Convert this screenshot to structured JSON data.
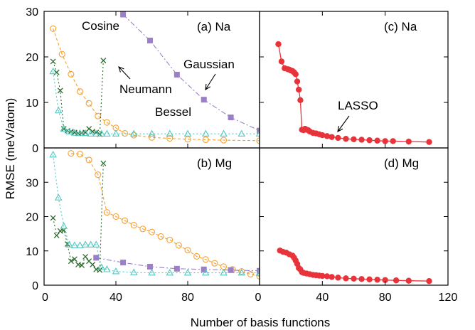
{
  "chart_data": {
    "type": "line",
    "xlabel": "Number of basis functions",
    "ylabel": "RMSE (meV/atom)",
    "colors": {
      "Cosine": "#f5a030",
      "Gaussian": "#9b7fc8",
      "Neumann": "#2e6b2e",
      "Bessel": "#50c8c0",
      "LASSO": "#e8333a"
    },
    "panels": [
      {
        "label": "(a) Na",
        "xlim": [
          0,
          120
        ],
        "ylim": [
          0,
          30
        ],
        "xticks": [
          "0",
          "40",
          "80"
        ],
        "yticks": [
          "0",
          "10",
          "20",
          "30"
        ],
        "series": [
          {
            "name": "Cosine",
            "marker": "circle",
            "x": [
              5,
              10,
              15,
              20,
              25,
              30,
              35,
              40,
              45,
              50,
              60,
              70,
              80,
              90,
              100,
              120
            ],
            "y": [
              26.2,
              20.6,
              16.2,
              12.4,
              9.8,
              7.0,
              5.6,
              4.4,
              3.2,
              2.8,
              2.3,
              2.1,
              1.9,
              1.8,
              1.7,
              1.6
            ]
          },
          {
            "name": "Gaussian",
            "marker": "square",
            "x": [
              44,
              59,
              74,
              89,
              104,
              120
            ],
            "y": [
              29.3,
              23.6,
              16.1,
              10.6,
              6.7,
              3.8
            ]
          },
          {
            "name": "Neumann",
            "marker": "cross",
            "x": [
              5,
              7,
              9,
              11,
              13,
              15,
              17,
              19,
              21,
              23,
              25,
              27,
              29,
              31,
              33
            ],
            "y": [
              19.0,
              16.6,
              12.6,
              4.2,
              3.8,
              3.6,
              3.4,
              3.2,
              3.3,
              3.4,
              4.2,
              3.6,
              3.4,
              3.0,
              19.2
            ]
          },
          {
            "name": "Bessel",
            "marker": "triangle",
            "x": [
              5,
              8,
              11,
              14,
              17,
              20,
              23,
              26,
              29,
              32,
              35,
              40,
              50,
              60,
              70,
              80,
              90,
              100,
              110,
              120
            ],
            "y": [
              16.8,
              8.2,
              4.2,
              3.6,
              3.3,
              3.2,
              3.2,
              3.1,
              3.1,
              3.1,
              3.1,
              3.1,
              3.1,
              3.1,
              3.1,
              3.1,
              3.1,
              3.1,
              3.1,
              3.1
            ]
          }
        ],
        "annotations": [
          "Cosine",
          "Gaussian",
          "Neumann",
          "Bessel"
        ]
      },
      {
        "label": "(b) Mg",
        "xlim": [
          0,
          120
        ],
        "ylim": [
          0,
          40
        ],
        "xticks": [
          "0",
          "40",
          "80"
        ],
        "yticks": [
          "0",
          "10",
          "20",
          "30"
        ],
        "series": [
          {
            "name": "Cosine",
            "marker": "circle",
            "x": [
              15,
              20,
              25,
              30,
              35,
              40,
              45,
              50,
              55,
              60,
              65,
              70,
              75,
              80,
              85,
              90,
              95,
              100,
              105,
              110,
              115,
              120
            ],
            "y": [
              38.4,
              38.2,
              36.5,
              32.2,
              21.2,
              20.0,
              18.8,
              17.5,
              16.4,
              15.5,
              14.2,
              13.2,
              11.6,
              10.2,
              8.4,
              7.5,
              6.4,
              5.4,
              4.6,
              4.0,
              3.2,
              2.6
            ]
          },
          {
            "name": "Gaussian",
            "marker": "square",
            "x": [
              29,
              44,
              59,
              74,
              89,
              104,
              120
            ],
            "y": [
              8.0,
              6.6,
              5.4,
              4.8,
              4.6,
              4.4,
              4.2
            ]
          },
          {
            "name": "Neumann",
            "marker": "cross",
            "x": [
              5,
              7,
              9,
              11,
              13,
              15,
              17,
              19,
              21,
              23,
              25,
              27,
              29,
              31,
              33
            ],
            "y": [
              19.6,
              14.5,
              15.8,
              16.0,
              12.0,
              7.0,
              7.6,
              6.0,
              5.8,
              8.3,
              7.0,
              6.0,
              4.6,
              4.4,
              35.5
            ]
          },
          {
            "name": "Bessel",
            "marker": "triangle",
            "x": [
              5,
              8,
              11,
              14,
              17,
              20,
              23,
              26,
              29,
              32,
              35,
              40,
              50,
              60,
              70,
              80,
              90,
              100,
              110,
              120
            ],
            "y": [
              38.0,
              25.5,
              17.2,
              11.8,
              11.6,
              11.6,
              11.8,
              11.8,
              11.8,
              5.2,
              4.6,
              4.0,
              3.7,
              3.6,
              3.6,
              3.6,
              3.6,
              3.6,
              3.6,
              3.6
            ]
          }
        ]
      },
      {
        "label": "(c) Na",
        "xlim": [
          0,
          120
        ],
        "ylim": [
          0,
          30
        ],
        "xticks": [
          "40",
          "80",
          "120"
        ],
        "series": [
          {
            "name": "LASSO",
            "marker": "filled-circle",
            "x": [
              12,
              14,
              16,
              18,
              19,
              20,
              21,
              22,
              23,
              24,
              25,
              26,
              27,
              28,
              29,
              30,
              31,
              32,
              34,
              36,
              38,
              40,
              43,
              46,
              50,
              55,
              60,
              65,
              70,
              75,
              80,
              85,
              95,
              108
            ],
            "y": [
              22.8,
              19.0,
              17.5,
              17.3,
              17.2,
              17.0,
              16.9,
              16.6,
              16.2,
              14.6,
              12.8,
              10.5,
              4.0,
              3.9,
              4.2,
              4.0,
              3.9,
              3.6,
              3.3,
              3.2,
              3.0,
              2.8,
              2.6,
              2.4,
              2.2,
              2.0,
              1.9,
              1.8,
              1.7,
              1.6,
              1.5,
              1.5,
              1.4,
              1.3
            ]
          }
        ],
        "annotations": [
          "LASSO"
        ]
      },
      {
        "label": "(d) Mg",
        "xlim": [
          0,
          120
        ],
        "ylim": [
          0,
          40
        ],
        "xticks": [
          "40",
          "80",
          "120"
        ],
        "series": [
          {
            "name": "LASSO",
            "marker": "filled-circle",
            "x": [
              13,
              15,
              17,
              19,
              21,
              22,
              23,
              24,
              25,
              26,
              27,
              28,
              30,
              32,
              34,
              36,
              38,
              40,
              43,
              46,
              50,
              55,
              60,
              65,
              70,
              75,
              80,
              87,
              95,
              108
            ],
            "y": [
              10.1,
              9.7,
              9.5,
              9.0,
              8.6,
              8.0,
              7.2,
              6.2,
              5.0,
              4.6,
              3.8,
              3.6,
              3.4,
              3.2,
              3.0,
              2.9,
              2.8,
              2.7,
              2.6,
              2.4,
              2.2,
              2.0,
              1.9,
              1.8,
              1.7,
              1.6,
              1.5,
              1.4,
              1.3,
              1.2
            ]
          }
        ]
      }
    ]
  }
}
